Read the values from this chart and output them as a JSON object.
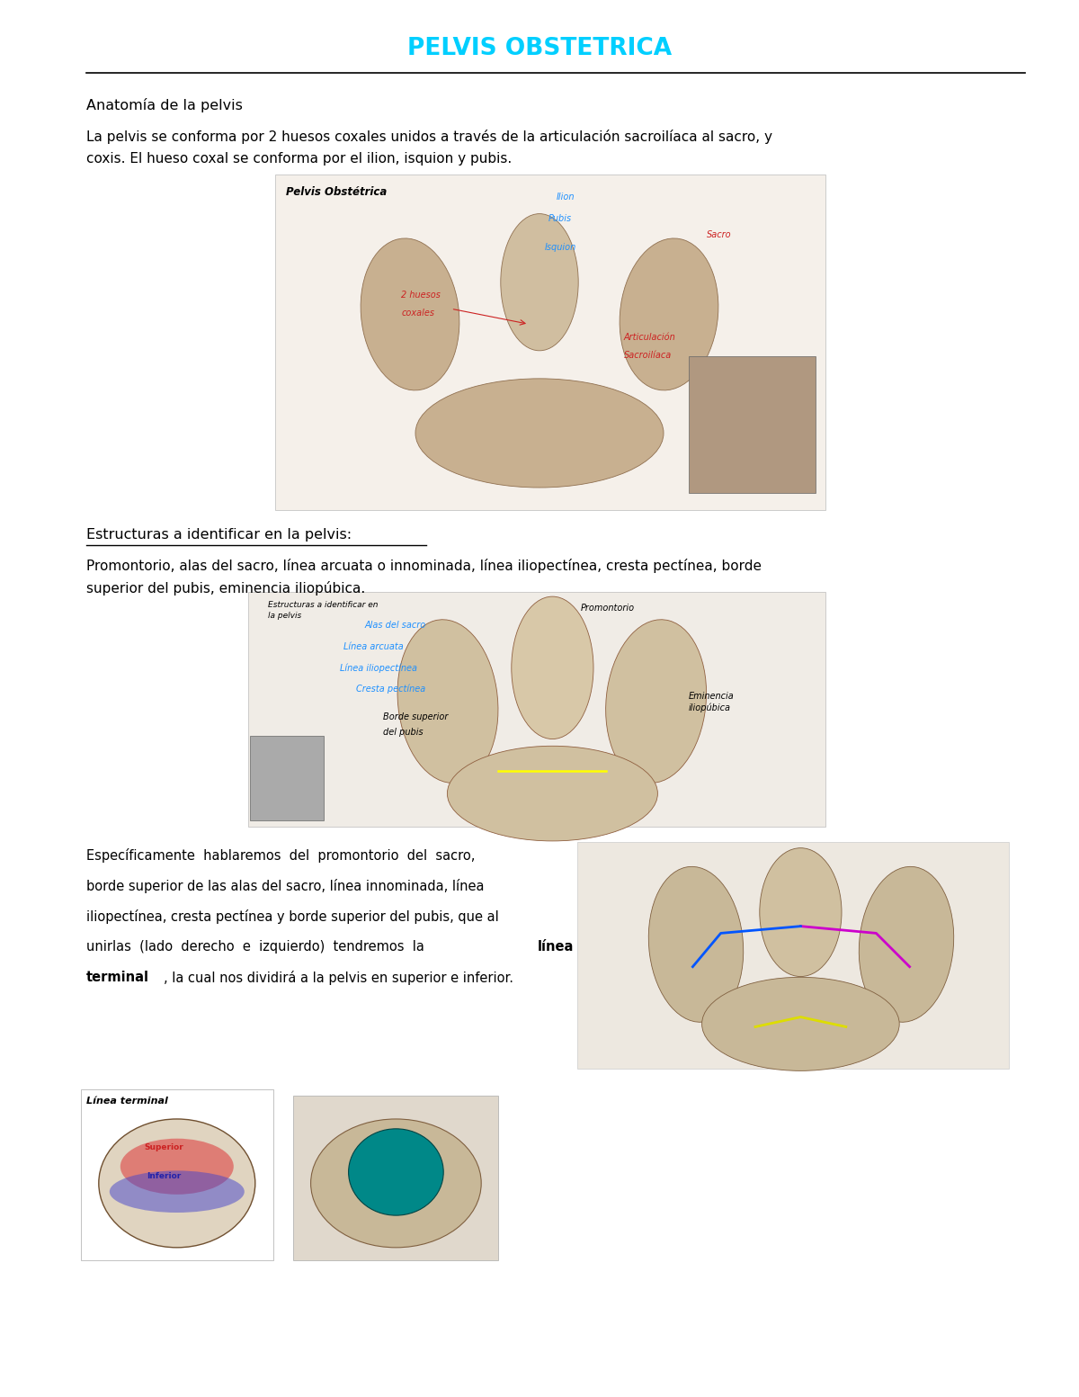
{
  "title": "PELVIS OBSTETRICA",
  "title_color": "#00cfff",
  "background_color": "#ffffff",
  "section1_heading": "Anatomía de la pelvis",
  "section1_body_line1": "La pelvis se conforma por 2 huesos coxales unidos a través de la articulación sacroilíaca al sacro, y",
  "section1_body_line2": "coxis. El hueso coxal se conforma por el ilion, isquion y pubis.",
  "section2_heading": "Estructuras a identificar en la pelvis:",
  "section2_body_line1": "Promontorio, alas del sacro, línea arcuata o innominada, línea iliopectínea, cresta pectínea, borde",
  "section2_body_line2": "superior del pubis, eminencia iliopúbica.",
  "section3_line1": "Específicamente  hablaremos  del  promontorio  del  sacro,",
  "section3_line2": "borde superior de las alas del sacro, línea innominada, línea",
  "section3_line3": "iliopectínea, cresta pectínea y borde superior del pubis, que al",
  "section3_line4": "unirlas  (lado  derecho  e  izquierdo)  tendremos  la  ",
  "section3_bold1": "línea",
  "section3_bold2": "terminal",
  "section3_line6": ", la cual nos dividirá a la pelvis en superior e inferior.",
  "blue": "#1e90ff",
  "red": "#cc2222",
  "black": "#000000"
}
